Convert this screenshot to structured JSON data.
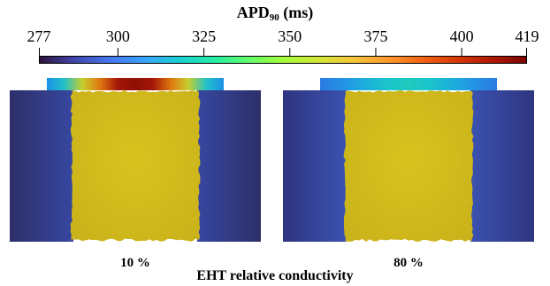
{
  "colorbar": {
    "title_main": "APD",
    "title_sub": "90",
    "title_unit": " (ms)",
    "min": 277,
    "max": 419,
    "ticks": [
      "277",
      "300",
      "325",
      "350",
      "375",
      "400",
      "419"
    ],
    "colormap": [
      "#30123b",
      "#4145ab",
      "#4675ed",
      "#39a2fc",
      "#1bcfd4",
      "#24eca6",
      "#61fc6c",
      "#a4fc3b",
      "#d1e834",
      "#f3c63a",
      "#fe9b2d",
      "#f36315",
      "#d93806",
      "#b11901",
      "#7a0402"
    ]
  },
  "panels": [
    {
      "label": "10 %",
      "conductivity": 10,
      "bridge_colors": [
        "#1a90e8",
        "#24c2c8",
        "#c7ce2e",
        "#e0780e",
        "#a41808",
        "#8e0e04",
        "#a41808",
        "#e0780e",
        "#c7ce2e",
        "#24c2c8",
        "#1a90e8"
      ],
      "side_color_outer": "#2d2f6a",
      "side_color_inner": "#3747a0",
      "tissue_color": "#d8c21e"
    },
    {
      "label": "80 %",
      "conductivity": 80,
      "bridge_colors": [
        "#2b7be0",
        "#2392e6",
        "#1eaedc",
        "#1bc4cc",
        "#1fcabe",
        "#1bc4cc",
        "#1eaedc",
        "#2392e6",
        "#2b7be0"
      ],
      "side_color_outer": "#2f3580",
      "side_color_inner": "#3a52b0",
      "tissue_color": "#d8c21e"
    }
  ],
  "xlabel": "EHT relative conductivity"
}
